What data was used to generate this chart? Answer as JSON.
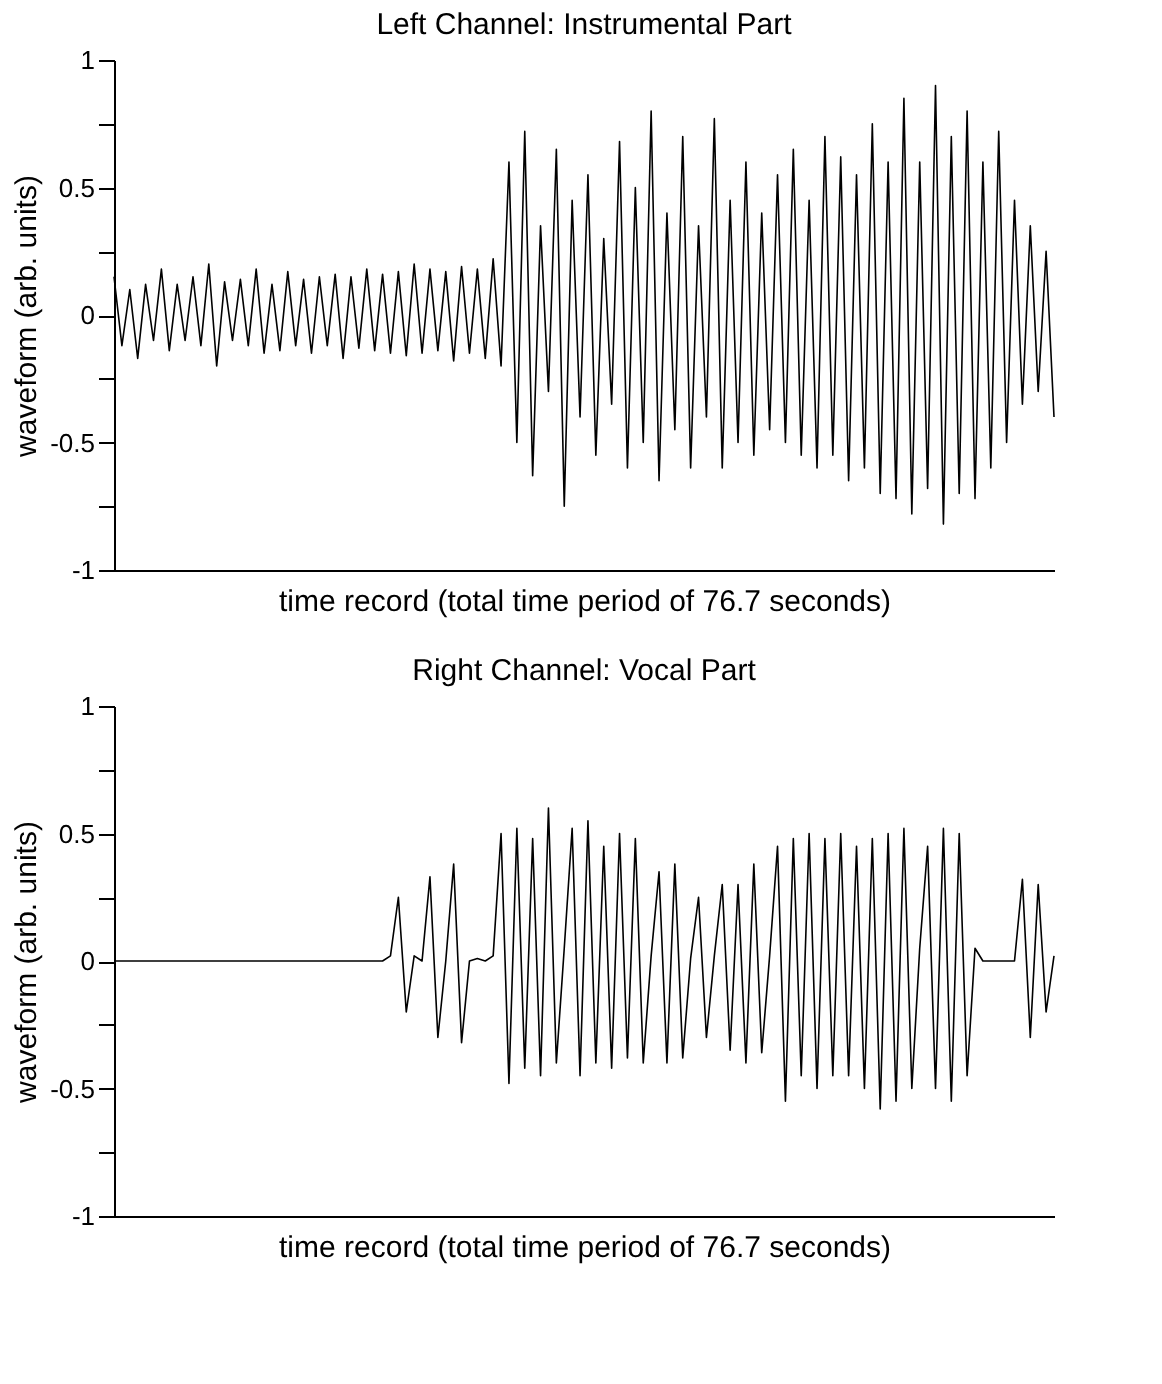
{
  "chart_data": [
    {
      "type": "line",
      "title": "Left Channel: Instrumental Part",
      "xlabel": "time record (total time period of 76.7 seconds)",
      "ylabel": "waveform (arb. units)",
      "categories": [
        null,
        null,
        null,
        null,
        null,
        null,
        null,
        null,
        null,
        null,
        null,
        null,
        null,
        null,
        null,
        null,
        null,
        null,
        null,
        null,
        null,
        null,
        null,
        null,
        null,
        null,
        null,
        null,
        null,
        null,
        null,
        null,
        null,
        null,
        null,
        null,
        null,
        null,
        null,
        null,
        null,
        null,
        null,
        null,
        null,
        null,
        null,
        null,
        null,
        null,
        null,
        null,
        null,
        null,
        null,
        null,
        null,
        null,
        null,
        null,
        null,
        null,
        null,
        null,
        null,
        null,
        null,
        null,
        null,
        null,
        null,
        null,
        null,
        null,
        null,
        null,
        null,
        null,
        null,
        null,
        null,
        null,
        null,
        null,
        null,
        null,
        null,
        null,
        null,
        null,
        null,
        null,
        null,
        null,
        null,
        null,
        null,
        null,
        null,
        null,
        null,
        null,
        null,
        null,
        null,
        null,
        null,
        null,
        null,
        null,
        null,
        null,
        null,
        null,
        null,
        null,
        null,
        null,
        null,
        null
      ],
      "series": [
        {
          "color": "#000000",
          "values": [
            0.15,
            -0.12,
            0.1,
            -0.17,
            0.12,
            -0.1,
            0.18,
            -0.14,
            0.12,
            -0.1,
            0.15,
            -0.12,
            0.2,
            -0.2,
            0.13,
            -0.1,
            0.14,
            -0.12,
            0.18,
            -0.15,
            0.12,
            -0.14,
            0.17,
            -0.12,
            0.14,
            -0.15,
            0.15,
            -0.12,
            0.16,
            -0.17,
            0.15,
            -0.13,
            0.18,
            -0.14,
            0.16,
            -0.15,
            0.17,
            -0.16,
            0.2,
            -0.15,
            0.18,
            -0.14,
            0.17,
            -0.18,
            0.19,
            -0.15,
            0.18,
            -0.17,
            0.22,
            -0.2,
            0.6,
            -0.5,
            0.72,
            -0.63,
            0.35,
            -0.3,
            0.65,
            -0.75,
            0.45,
            -0.4,
            0.55,
            -0.55,
            0.3,
            -0.35,
            0.68,
            -0.6,
            0.5,
            -0.5,
            0.8,
            -0.65,
            0.4,
            -0.45,
            0.7,
            -0.6,
            0.35,
            -0.4,
            0.77,
            -0.6,
            0.45,
            -0.5,
            0.6,
            -0.55,
            0.4,
            -0.45,
            0.55,
            -0.5,
            0.65,
            -0.55,
            0.45,
            -0.6,
            0.7,
            -0.55,
            0.62,
            -0.65,
            0.55,
            -0.6,
            0.75,
            -0.7,
            0.6,
            -0.72,
            0.85,
            -0.78,
            0.6,
            -0.68,
            0.9,
            -0.82,
            0.7,
            -0.7,
            0.8,
            -0.72,
            0.6,
            -0.6,
            0.72,
            -0.5,
            0.45,
            -0.35,
            0.35,
            -0.3,
            0.25,
            -0.4
          ]
        }
      ],
      "ylim": [
        -1,
        1
      ],
      "yticks": [
        -1,
        {
          "value": -0.75,
          "label": null
        },
        -0.5,
        {
          "value": -0.25,
          "label": null
        },
        0,
        {
          "value": 0.25,
          "label": null
        },
        0.5,
        {
          "value": 0.75,
          "label": null
        },
        1
      ],
      "tick_labels": "y",
      "grid": false,
      "legend": false,
      "marker": "none",
      "line_style": "solid"
    },
    {
      "type": "line",
      "title": "Right Channel: Vocal Part",
      "xlabel": "time record (total time period of 76.7 seconds)",
      "ylabel": "waveform (arb. units)",
      "categories": [
        null,
        null,
        null,
        null,
        null,
        null,
        null,
        null,
        null,
        null,
        null,
        null,
        null,
        null,
        null,
        null,
        null,
        null,
        null,
        null,
        null,
        null,
        null,
        null,
        null,
        null,
        null,
        null,
        null,
        null,
        null,
        null,
        null,
        null,
        null,
        null,
        null,
        null,
        null,
        null,
        null,
        null,
        null,
        null,
        null,
        null,
        null,
        null,
        null,
        null,
        null,
        null,
        null,
        null,
        null,
        null,
        null,
        null,
        null,
        null,
        null,
        null,
        null,
        null,
        null,
        null,
        null,
        null,
        null,
        null,
        null,
        null,
        null,
        null,
        null,
        null,
        null,
        null,
        null,
        null,
        null,
        null,
        null,
        null,
        null,
        null,
        null,
        null,
        null,
        null,
        null,
        null,
        null,
        null,
        null,
        null,
        null,
        null,
        null,
        null,
        null,
        null,
        null,
        null,
        null,
        null,
        null,
        null,
        null,
        null,
        null,
        null,
        null,
        null,
        null,
        null,
        null,
        null,
        null,
        null
      ],
      "series": [
        {
          "color": "#000000",
          "values": [
            0,
            0,
            0,
            0,
            0,
            0,
            0,
            0,
            0,
            0,
            0,
            0,
            0,
            0,
            0,
            0,
            0,
            0,
            0,
            0,
            0,
            0,
            0,
            0,
            0,
            0,
            0,
            0,
            0,
            0,
            0,
            0,
            0,
            0,
            0,
            0.02,
            0.25,
            -0.2,
            0.02,
            0,
            0.33,
            -0.3,
            0,
            0.38,
            -0.32,
            0,
            0.01,
            0,
            0.02,
            0.5,
            -0.48,
            0.52,
            -0.42,
            0.48,
            -0.45,
            0.6,
            -0.4,
            0.05,
            0.52,
            -0.45,
            0.55,
            -0.4,
            0.45,
            -0.42,
            0.5,
            -0.38,
            0.48,
            -0.4,
            0.02,
            0.35,
            -0.4,
            0.38,
            -0.38,
            0.01,
            0.25,
            -0.3,
            0.02,
            0.3,
            -0.35,
            0.3,
            -0.4,
            0.38,
            -0.36,
            0.02,
            0.45,
            -0.55,
            0.48,
            -0.45,
            0.5,
            -0.5,
            0.48,
            -0.45,
            0.5,
            -0.45,
            0.45,
            -0.5,
            0.48,
            -0.58,
            0.5,
            -0.55,
            0.52,
            -0.5,
            0.05,
            0.45,
            -0.5,
            0.52,
            -0.55,
            0.5,
            -0.45,
            0.05,
            0,
            0,
            0,
            0,
            0,
            0.32,
            -0.3,
            0.3,
            -0.2,
            0.02
          ]
        }
      ],
      "ylim": [
        -1,
        1
      ],
      "yticks": [
        -1,
        {
          "value": -0.75,
          "label": null
        },
        -0.5,
        {
          "value": -0.25,
          "label": null
        },
        0,
        {
          "value": 0.25,
          "label": null
        },
        0.5,
        {
          "value": 0.75,
          "label": null
        },
        1
      ],
      "tick_labels": "y",
      "grid": false,
      "legend": false,
      "marker": "none",
      "line_style": "solid"
    }
  ]
}
